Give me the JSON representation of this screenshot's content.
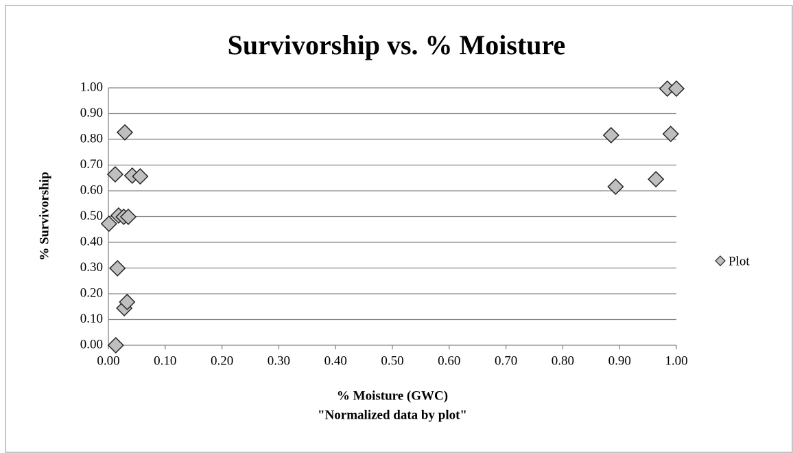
{
  "chart_data": {
    "type": "scatter",
    "title": "Survivorship vs. % Moisture",
    "x_label": [
      "% Moisture (GWC)",
      "\"Normalized data by plot\""
    ],
    "y_label": "% Survivorship",
    "x": [
      0.001,
      0.013,
      0.016,
      0.028,
      0.033,
      0.029,
      0.012,
      0.018,
      0.027,
      0.035,
      0.042,
      0.056,
      0.885,
      0.893,
      0.964,
      0.99,
      0.984,
      1.0
    ],
    "series": [
      {
        "name": "Plot",
        "color": "#bfbfbf",
        "values": [
          0.472,
          0,
          0.299,
          0.144,
          0.168,
          0.827,
          0.664,
          0.504,
          0.499,
          0.499,
          0.659,
          0.656,
          0.816,
          0.616,
          0.645,
          0.821,
          0.997,
          0.997
        ]
      }
    ],
    "xlim": [
      0,
      1
    ],
    "ylim": [
      0,
      1
    ],
    "xticks": [
      {
        "value": 0,
        "label": "0.00"
      },
      {
        "value": 0.1,
        "label": "0.10"
      },
      {
        "value": 0.2,
        "label": "0.20"
      },
      {
        "value": 0.3,
        "label": "0.30"
      },
      {
        "value": 0.4,
        "label": "0.40"
      },
      {
        "value": 0.5,
        "label": "0.50"
      },
      {
        "value": 0.6,
        "label": "0.60"
      },
      {
        "value": 0.7,
        "label": "0.70"
      },
      {
        "value": 0.8,
        "label": "0.80"
      },
      {
        "value": 0.9,
        "label": "0.90"
      },
      {
        "value": 1,
        "label": "1.00"
      }
    ],
    "yticks": [
      {
        "value": 0,
        "label": "0.00"
      },
      {
        "value": 0.1,
        "label": "0.10"
      },
      {
        "value": 0.2,
        "label": "0.20"
      },
      {
        "value": 0.3,
        "label": "0.30"
      },
      {
        "value": 0.4,
        "label": "0.40"
      },
      {
        "value": 0.5,
        "label": "0.50"
      },
      {
        "value": 0.6,
        "label": "0.60"
      },
      {
        "value": 0.7,
        "label": "0.70"
      },
      {
        "value": 0.8,
        "label": "0.80"
      },
      {
        "value": 0.9,
        "label": "0.90"
      },
      {
        "value": 1,
        "label": "1.00"
      }
    ],
    "grid": true,
    "legend": "right"
  }
}
